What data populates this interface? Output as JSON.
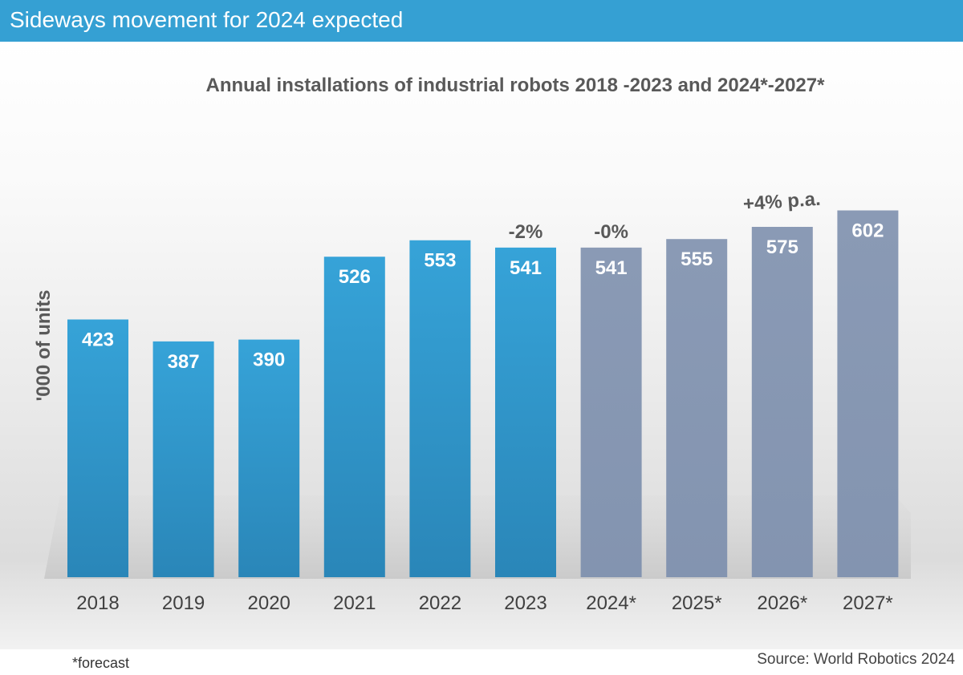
{
  "header": {
    "title": "Sideways movement for 2024 expected"
  },
  "chart_data": {
    "type": "bar",
    "title": "Annual installations of industrial robots 2018  -2023 and 2024*-2027*",
    "ylabel": "'000 of units",
    "xlabel": "",
    "ylim": [
      0,
      700
    ],
    "categories": [
      "2018",
      "2019",
      "2020",
      "2021",
      "2022",
      "2023",
      "2024*",
      "2025*",
      "2026*",
      "2027*"
    ],
    "values": [
      423,
      387,
      390,
      526,
      553,
      541,
      541,
      555,
      575,
      602
    ],
    "forecast": [
      false,
      false,
      false,
      false,
      false,
      false,
      true,
      true,
      true,
      true
    ],
    "annotations": [
      {
        "category": "2023",
        "text": "-2%"
      },
      {
        "category": "2024*",
        "text": "-0%"
      },
      {
        "category": "2026*",
        "text": "+4% p.a."
      }
    ],
    "colors": {
      "actual": "#2f95c8",
      "forecast": "#8797b2",
      "header": "#35a0d3"
    }
  },
  "footer": {
    "note": "*forecast",
    "source": "Source: World Robotics 2024"
  }
}
